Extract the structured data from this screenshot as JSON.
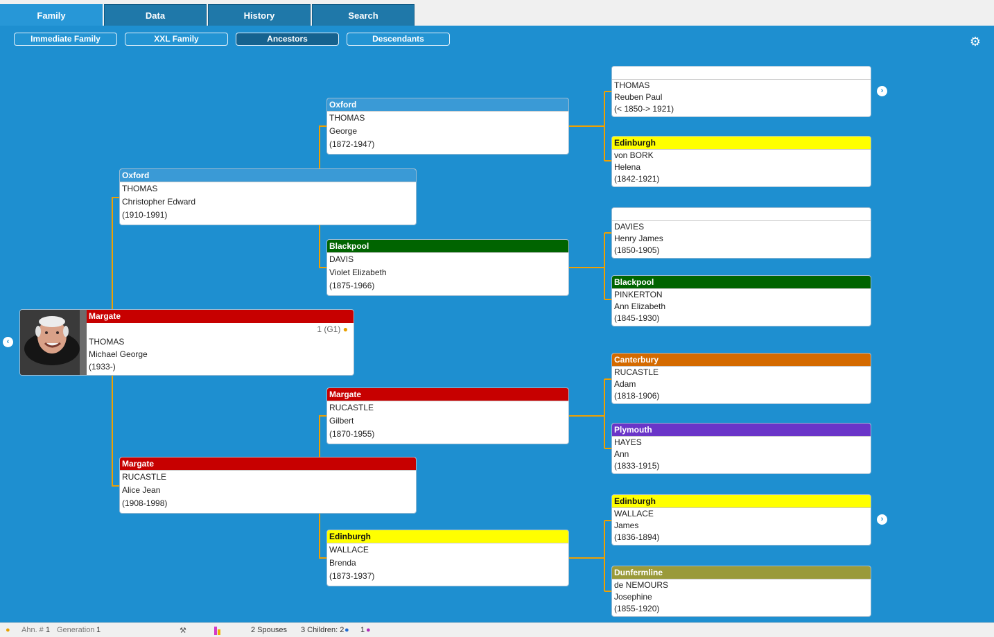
{
  "tabs": [
    {
      "label": "Family",
      "active": true
    },
    {
      "label": "Data",
      "active": false
    },
    {
      "label": "History",
      "active": false
    },
    {
      "label": "Search",
      "active": false
    }
  ],
  "subtabs": [
    {
      "label": "Immediate Family",
      "active": false
    },
    {
      "label": "XXL Family",
      "active": false
    },
    {
      "label": "Ancestors",
      "active": true
    },
    {
      "label": "Descendants",
      "active": false
    }
  ],
  "root": {
    "place": "Margate",
    "place_color": "#c70000",
    "generation_label": "1 (G1)",
    "surname": "THOMAS",
    "given": "Michael George",
    "dates": "(1933-)"
  },
  "gen2": [
    {
      "place": "Oxford",
      "color": "#3a9ad6",
      "surname": "THOMAS",
      "given": "Christopher Edward",
      "dates": "(1910-1991)"
    },
    {
      "place": "Margate",
      "color": "#c70000",
      "surname": "RUCASTLE",
      "given": "Alice Jean",
      "dates": "(1908-1998)"
    }
  ],
  "gen3": [
    {
      "place": "Oxford",
      "color": "#3a9ad6",
      "surname": "THOMAS",
      "given": "George",
      "dates": "(1872-1947)"
    },
    {
      "place": "Blackpool",
      "color": "#006400",
      "surname": "DAVIS",
      "given": "Violet Elizabeth",
      "dates": "(1875-1966)"
    },
    {
      "place": "Margate",
      "color": "#c70000",
      "surname": "RUCASTLE",
      "given": "Gilbert",
      "dates": "(1870-1955)"
    },
    {
      "place": "Edinburgh",
      "color": "#ffff00",
      "surname": "WALLACE",
      "given": "Brenda",
      "dates": "(1873-1937)"
    }
  ],
  "gen4": [
    {
      "place": "",
      "color": "#ffffff",
      "surname": "THOMAS",
      "given": "Reuben Paul",
      "dates": "(< 1850-> 1921)"
    },
    {
      "place": "Edinburgh",
      "color": "#ffff00",
      "surname": "von BORK",
      "given": "Helena",
      "dates": "(1842-1921)"
    },
    {
      "place": "",
      "color": "#ffffff",
      "surname": "DAVIES",
      "given": "Henry James",
      "dates": "(1850-1905)"
    },
    {
      "place": "Blackpool",
      "color": "#006400",
      "surname": "PINKERTON",
      "given": "Ann Elizabeth",
      "dates": "(1845-1930)"
    },
    {
      "place": "Canterbury",
      "color": "#d46a00",
      "surname": "RUCASTLE",
      "given": "Adam",
      "dates": "(1818-1906)"
    },
    {
      "place": "Plymouth",
      "color": "#6a35c8",
      "surname": "HAYES",
      "given": "Ann",
      "dates": "(1833-1915)"
    },
    {
      "place": "Edinburgh",
      "color": "#ffff00",
      "surname": "WALLACE",
      "given": "James",
      "dates": "(1836-1894)"
    },
    {
      "place": "Dunfermline",
      "color": "#9a9a3a",
      "surname": "de NEMOURS",
      "given": "Josephine",
      "dates": "(1855-1920)"
    }
  ],
  "status": {
    "ahn_label": "Ahn. #",
    "ahn_value": "1",
    "generation_label": "Generation",
    "generation_value": "1",
    "spouses": "2 Spouses",
    "children": "3 Children: 2",
    "daughters": "1"
  },
  "colors": {
    "background": "#1e8fd0",
    "connector": "#f0a000",
    "tab": "#1f78a9"
  }
}
